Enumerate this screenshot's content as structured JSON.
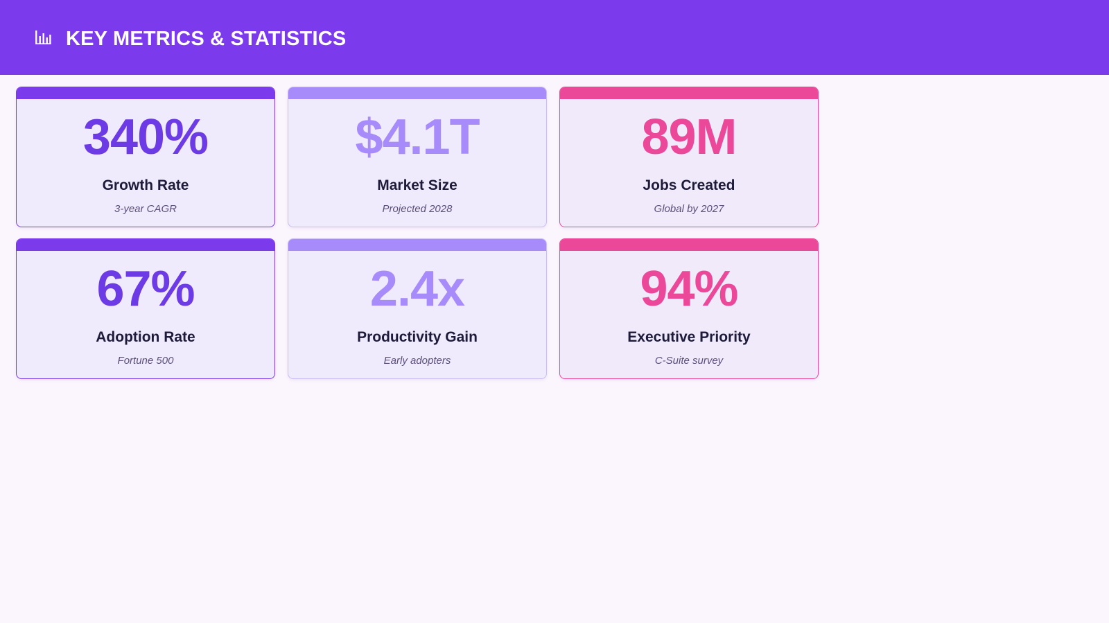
{
  "header": {
    "icon": "bar-chart-icon",
    "title": "KEY METRICS & STATISTICS",
    "background": "#7c3aed"
  },
  "colors": {
    "purple": "#7c3aed",
    "lavender": "#a78bfa",
    "pink": "#ec4899",
    "page_background": "#fbf5fd"
  },
  "metrics": [
    {
      "value": "340%",
      "label": "Growth Rate",
      "sub": "3-year CAGR",
      "accent": "#7c3aed"
    },
    {
      "value": "$4.1T",
      "label": "Market Size",
      "sub": "Projected 2028",
      "accent": "#a78bfa"
    },
    {
      "value": "89M",
      "label": "Jobs Created",
      "sub": "Global by 2027",
      "accent": "#ec4899"
    },
    {
      "value": "67%",
      "label": "Adoption Rate",
      "sub": "Fortune 500",
      "accent": "#7c3aed"
    },
    {
      "value": "2.4x",
      "label": "Productivity Gain",
      "sub": "Early adopters",
      "accent": "#a78bfa"
    },
    {
      "value": "94%",
      "label": "Executive Priority",
      "sub": "C-Suite survey",
      "accent": "#ec4899"
    }
  ]
}
